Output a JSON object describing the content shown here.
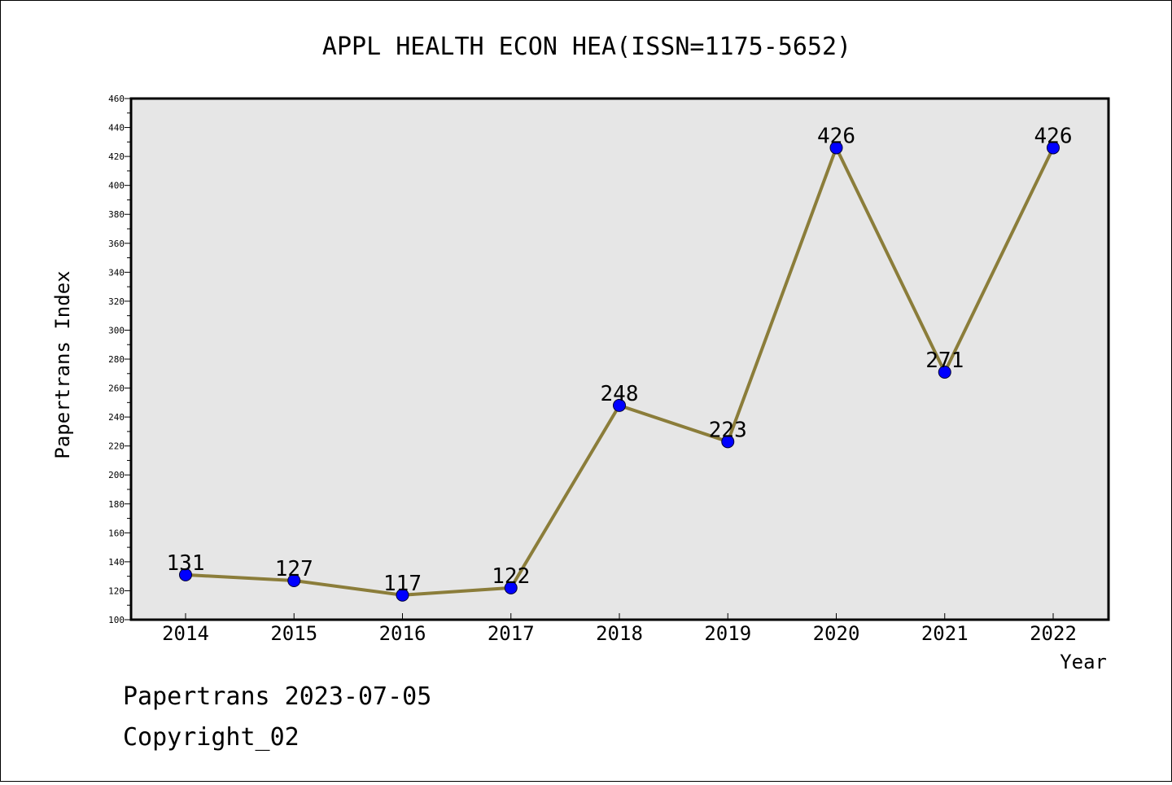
{
  "chart_data": {
    "type": "line",
    "title": "APPL HEALTH ECON HEA(ISSN=1175-5652)",
    "xlabel": "Year",
    "ylabel": "Papertrans Index",
    "categories": [
      "2014",
      "2015",
      "2016",
      "2017",
      "2018",
      "2019",
      "2020",
      "2021",
      "2022"
    ],
    "values": [
      131,
      127,
      117,
      122,
      248,
      223,
      426,
      271,
      426
    ],
    "data_labels": [
      "131",
      "127",
      "117",
      "122",
      "248",
      "223",
      "426",
      "271",
      "426"
    ],
    "ylim": [
      100,
      460
    ],
    "ytick_step": 20,
    "grid": false,
    "line_color": "#8b7d3a",
    "marker_color": "#0000ff",
    "plot_background": "#e6e6e6"
  },
  "footer": {
    "line1": "Papertrans 2023-07-05",
    "line2": "Copyright_02"
  }
}
